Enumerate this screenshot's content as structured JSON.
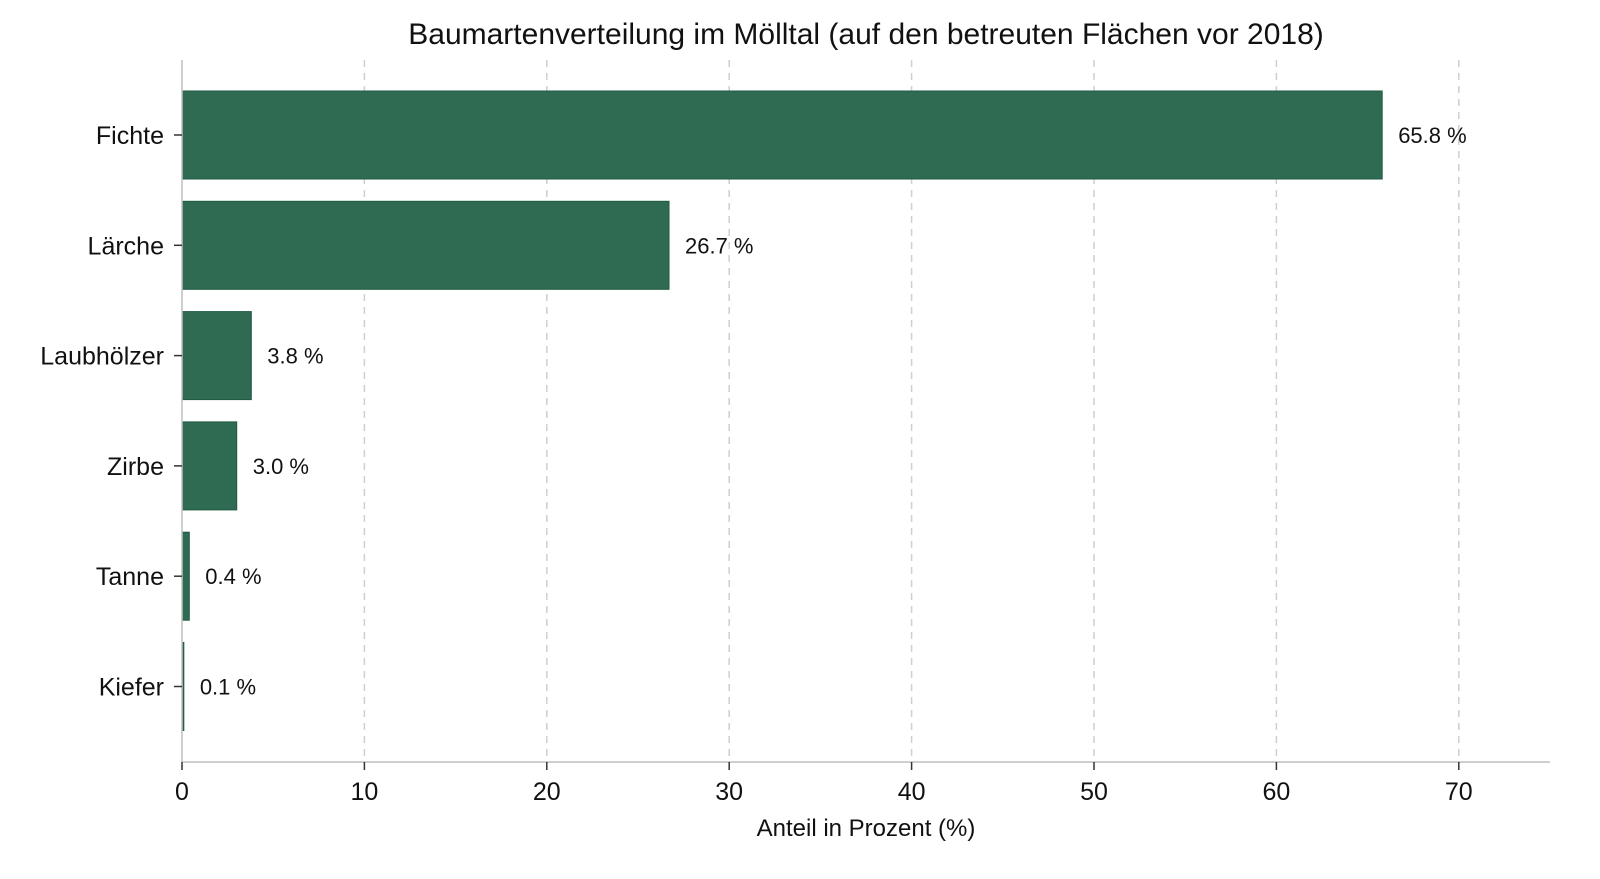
{
  "chart_data": {
    "type": "bar",
    "orientation": "horizontal",
    "title": "Baumartenverteilung im Mölltal (auf den betreuten Flächen vor 2018)",
    "xlabel": "Anteil in Prozent (%)",
    "ylabel": "",
    "categories": [
      "Fichte",
      "Lärche",
      "Laubhölzer",
      "Zirbe",
      "Tanne",
      "Kiefer"
    ],
    "values": [
      65.8,
      26.7,
      3.8,
      3.0,
      0.4,
      0.1
    ],
    "data_labels": [
      "65.8 %",
      "26.7 %",
      "3.8 %",
      "3.0 %",
      "0.4 %",
      "0.1 %"
    ],
    "xlim": [
      0,
      75
    ],
    "xticks": [
      0,
      10,
      20,
      30,
      40,
      50,
      60,
      70
    ],
    "grid": "vertical-dashed",
    "bar_color": "#2f6b52",
    "legend": "none"
  }
}
